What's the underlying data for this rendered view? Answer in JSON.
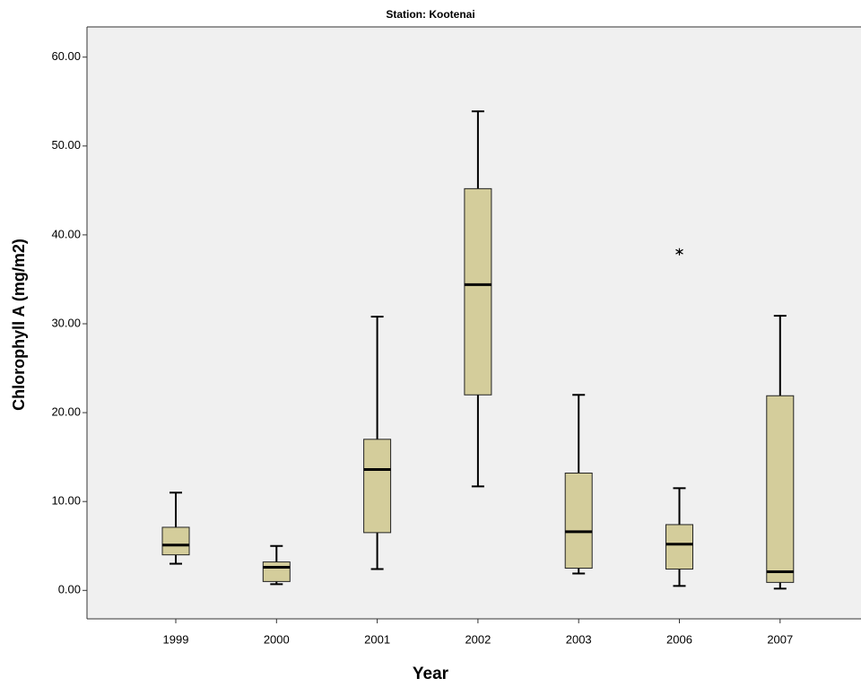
{
  "chart_data": {
    "type": "box",
    "title": "Station: Kootenai",
    "x_label": "Year",
    "y_label": "Chlorophyll A (mg/m2)",
    "categories": [
      "1999",
      "2000",
      "2001",
      "2002",
      "2003",
      "2006",
      "2007"
    ],
    "color": "#d4cd9b",
    "boxes": [
      {
        "min": 3.0,
        "q1": 4.0,
        "median": 5.1,
        "q3": 7.1,
        "max": 11.0
      },
      {
        "min": 0.7,
        "q1": 1.0,
        "median": 2.6,
        "q3": 3.2,
        "max": 5.0
      },
      {
        "min": 2.4,
        "q1": 6.5,
        "median": 13.6,
        "q3": 17.0,
        "max": 30.8
      },
      {
        "min": 11.7,
        "q1": 22.0,
        "median": 34.4,
        "q3": 45.2,
        "max": 53.9
      },
      {
        "min": 1.9,
        "q1": 2.5,
        "median": 6.6,
        "q3": 13.2,
        "max": 22.0
      },
      {
        "min": 0.5,
        "q1": 2.4,
        "median": 5.2,
        "q3": 7.4,
        "max": 11.5,
        "outliers": [
          38.1
        ]
      },
      {
        "min": 0.2,
        "q1": 0.9,
        "median": 2.1,
        "q3": 21.9,
        "max": 30.9
      }
    ],
    "ylim": [
      -3.2,
      63.4
    ],
    "yticks": [
      {
        "value": 0,
        "label": "0.00"
      },
      {
        "value": 10,
        "label": "10.00"
      },
      {
        "value": 20,
        "label": "20.00"
      },
      {
        "value": 30,
        "label": "30.00"
      },
      {
        "value": 40,
        "label": "40.00"
      },
      {
        "value": 50,
        "label": "50.00"
      },
      {
        "value": 60,
        "label": "60.00"
      }
    ]
  }
}
